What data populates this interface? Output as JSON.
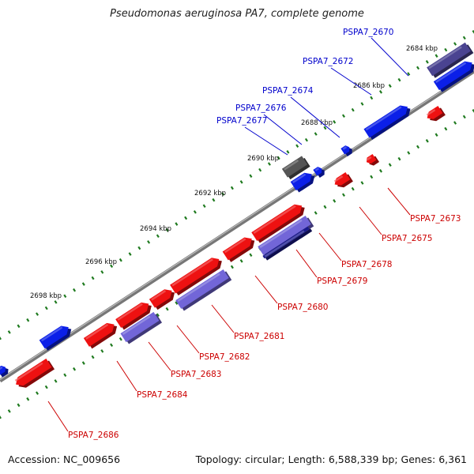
{
  "title": "Pseudomonas aeruginosa PA7, complete genome",
  "footer": {
    "accession": "Accession: NC_009656",
    "summary": "Topology: circular; Length: 6,588,339 bp; Genes: 6,361"
  },
  "colors": {
    "backbone": "#777777",
    "tick_dots": "#1f7a1f",
    "forward_label": "#0000cc",
    "reverse_label": "#cc0000",
    "gene_blue": "#0b1fe8",
    "gene_red": "#ee1111",
    "gene_purple": "#7266d8",
    "gene_navy": "#1a1a8c",
    "gene_gray": "#555555"
  },
  "ticks": [
    "2684 kbp",
    "2686 kbp",
    "2688 kbp",
    "2690 kbp",
    "2692 kbp",
    "2694 kbp",
    "2696 kbp",
    "2698 kbp"
  ],
  "forward_genes": [
    {
      "label": "PSPA7_2670"
    },
    {
      "label": "PSPA7_2672"
    },
    {
      "label": "PSPA7_2674"
    },
    {
      "label": "PSPA7_2676"
    },
    {
      "label": "PSPA7_2677"
    }
  ],
  "reverse_genes": [
    {
      "label": "PSPA7_2673"
    },
    {
      "label": "PSPA7_2675"
    },
    {
      "label": "PSPA7_2678"
    },
    {
      "label": "PSPA7_2679"
    },
    {
      "label": "PSPA7_2680"
    },
    {
      "label": "PSPA7_2681"
    },
    {
      "label": "PSPA7_2682"
    },
    {
      "label": "PSPA7_2683"
    },
    {
      "label": "PSPA7_2684"
    },
    {
      "label": "PSPA7_2686"
    }
  ]
}
